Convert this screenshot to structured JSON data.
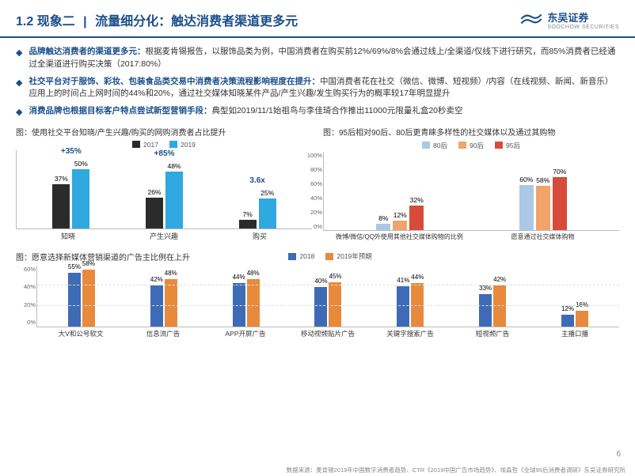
{
  "header": {
    "number": "1.2",
    "phenom": "现象二",
    "sep": "|",
    "title": "流量细分化：触达消费者渠道更多元",
    "logo_zh": "东吴证券",
    "logo_en": "SOOCHOW SECURITIES"
  },
  "bullets": [
    {
      "bold": "品牌触达消费者的渠道更多元：",
      "text": "根据麦肯锡报告，以服饰品类为例，中国消费者在购买前12%/69%/8%会通过线上/全渠道/仅线下进行研究，而85%消费者已经通过全渠道进行购买决策（2017:80%）"
    },
    {
      "bold": "社交平台对于服饰、彩妆、包装食品类交易中消费者决策流程影响程度在提升：",
      "text": "中国消费者花在社交（微信、微博、短视频）/内容（在线视频、新闻、新音乐）应用上的时间占上网时间的44%和20%，通过社交媒体知晓某件产品/产生兴趣/发生购买行为的概率较17年明显提升"
    },
    {
      "bold": "消费品牌也根据目标客户特点尝试新型营销手段：",
      "text": "典型如2019/11/1始祖鸟与李佳琦合作推出11000元限量礼盒20秒卖空"
    }
  ],
  "chart1": {
    "title": "图：使用社交平台知晓/产生兴趣/购买的网购消费者占比提升",
    "legend": [
      {
        "label": "2017",
        "color": "#2b2b2b"
      },
      {
        "label": "2019",
        "color": "#2fa9e0"
      }
    ],
    "categories": [
      "知晓",
      "产生兴趣",
      "购买"
    ],
    "series": {
      "2017": [
        37,
        26,
        7
      ],
      "2019": [
        50,
        48,
        25
      ]
    },
    "annotations": [
      "+35%",
      "+85%",
      "3.6x"
    ],
    "ymax": 60
  },
  "chart2": {
    "title": "图：95后相对90后、80后更青睐多样性的社交媒体以及通过其购物",
    "legend": [
      {
        "label": "80后",
        "color": "#a9c9e6"
      },
      {
        "label": "90后",
        "color": "#f2a36a"
      },
      {
        "label": "95后",
        "color": "#d84b3a"
      }
    ],
    "categories": [
      "微博/微信/QQ外使用其他社交媒体购物的比例",
      "愿意通过社交媒体购物"
    ],
    "values": [
      [
        8,
        12,
        32
      ],
      [
        60,
        58,
        70
      ]
    ],
    "ymax": 100,
    "yticks": [
      "100%",
      "80%",
      "60%",
      "40%",
      "20%",
      "0%"
    ]
  },
  "chart3": {
    "title": "图：愿意选择新媒体营销渠道的广告主比例在上升",
    "legend": [
      {
        "label": "2018",
        "color": "#3e6bb5"
      },
      {
        "label": "2019年预期",
        "color": "#e88a3c"
      }
    ],
    "categories": [
      "大V和公号软文",
      "信息流广告",
      "APP开屏广告",
      "移动视频贴片广告",
      "关键字搜索广告",
      "短视频广告",
      "主播口播"
    ],
    "values": [
      [
        55,
        58
      ],
      [
        42,
        48
      ],
      [
        44,
        48
      ],
      [
        40,
        45
      ],
      [
        41,
        44
      ],
      [
        33,
        42
      ],
      [
        12,
        16
      ]
    ],
    "ymax": 60,
    "yticks": [
      "60%",
      "40%",
      "20%",
      "0%"
    ]
  },
  "page": "6",
  "source": "数据来源：麦肯锡2019年中国数字消费者趋势、CTR《2019中国广告市场趋势》、埃森哲《全球95后消费者调研》东吴证券研究所"
}
